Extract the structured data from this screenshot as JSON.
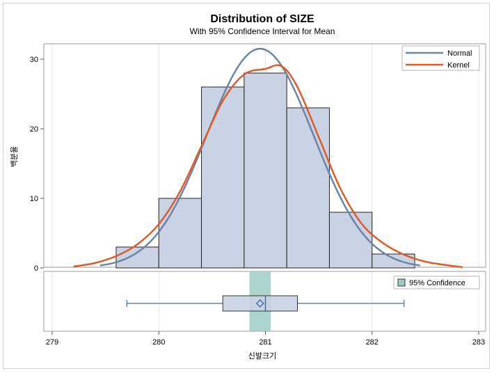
{
  "chart_data": {
    "type": "histogram",
    "title": "Distribution of SIZE",
    "subtitle": "With 95% Confidence Interval for Mean",
    "xlabel": "신발크기",
    "ylabel": "백분율",
    "xlim": [
      279,
      283
    ],
    "ylim": [
      0,
      32
    ],
    "xticks": [
      279,
      280,
      281,
      282,
      283
    ],
    "yticks": [
      0,
      10,
      20,
      30
    ],
    "bars": [
      {
        "x0": 279.6,
        "x1": 280.0,
        "value": 3
      },
      {
        "x0": 280.0,
        "x1": 280.4,
        "value": 10
      },
      {
        "x0": 280.4,
        "x1": 280.8,
        "value": 26
      },
      {
        "x0": 280.8,
        "x1": 281.2,
        "value": 28
      },
      {
        "x0": 281.2,
        "x1": 281.6,
        "value": 23
      },
      {
        "x0": 281.6,
        "x1": 282.0,
        "value": 8
      },
      {
        "x0": 282.0,
        "x1": 282.4,
        "value": 2
      }
    ],
    "series": [
      {
        "name": "Normal",
        "color": "#6b84a8",
        "type": "normal-curve",
        "mean": 280.95,
        "sd": 0.5,
        "x_range": [
          279.45,
          282.45
        ],
        "peak": 31.5
      },
      {
        "name": "Kernel",
        "color": "#e05a28",
        "type": "kernel-curve",
        "points": [
          [
            279.2,
            0.2
          ],
          [
            279.4,
            0.7
          ],
          [
            279.6,
            1.7
          ],
          [
            279.8,
            3.4
          ],
          [
            280.0,
            6.3
          ],
          [
            280.2,
            11.0
          ],
          [
            280.4,
            17.5
          ],
          [
            280.6,
            24.0
          ],
          [
            280.8,
            27.8
          ],
          [
            281.0,
            28.6
          ],
          [
            281.15,
            29.0
          ],
          [
            281.3,
            26.0
          ],
          [
            281.5,
            18.8
          ],
          [
            281.7,
            11.5
          ],
          [
            281.9,
            6.4
          ],
          [
            282.1,
            3.6
          ],
          [
            282.3,
            1.9
          ],
          [
            282.5,
            0.9
          ],
          [
            282.7,
            0.4
          ],
          [
            282.85,
            0.1
          ]
        ]
      }
    ],
    "legend": {
      "position": "top-right",
      "entries": [
        "Normal",
        "Kernel"
      ]
    },
    "boxplot": {
      "min": 279.7,
      "q1": 280.6,
      "median": 281.0,
      "mean": 280.95,
      "q3": 281.3,
      "max": 282.3
    },
    "confidence_interval": {
      "label": "95% Confidence",
      "lower": 280.85,
      "upper": 281.05,
      "color": "#9fcbc4"
    },
    "colors": {
      "bar_fill": "#c9d3e3",
      "bar_stroke": "#222222",
      "box_stroke": "#4a66b0",
      "grid": "#e6e6e6"
    }
  }
}
